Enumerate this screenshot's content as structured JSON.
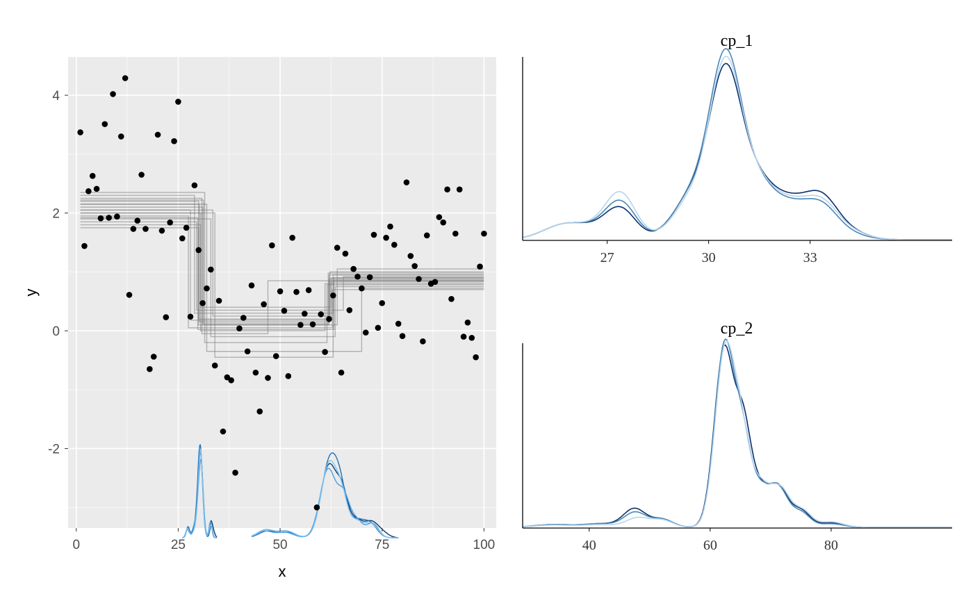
{
  "chart_data": [
    {
      "type": "scatter",
      "panel": "left",
      "xlabel": "x",
      "ylabel": "y",
      "xlim": [
        -2,
        103
      ],
      "ylim": [
        -3.35,
        4.65
      ],
      "x_ticks": [
        0,
        25,
        50,
        75,
        100
      ],
      "y_ticks": [
        -2,
        0,
        2,
        4
      ],
      "grid": true,
      "points": [
        [
          1,
          3.37
        ],
        [
          2,
          1.44
        ],
        [
          3,
          2.37
        ],
        [
          4,
          2.63
        ],
        [
          5,
          2.41
        ],
        [
          6,
          1.91
        ],
        [
          7,
          3.51
        ],
        [
          8,
          1.92
        ],
        [
          9,
          4.02
        ],
        [
          10,
          1.94
        ],
        [
          11,
          3.3
        ],
        [
          12,
          4.29
        ],
        [
          13,
          0.61
        ],
        [
          14,
          1.73
        ],
        [
          15,
          1.87
        ],
        [
          16,
          2.65
        ],
        [
          17,
          1.73
        ],
        [
          18,
          -0.65
        ],
        [
          19,
          -0.44
        ],
        [
          20,
          3.33
        ],
        [
          21,
          1.7
        ],
        [
          22,
          0.23
        ],
        [
          23,
          1.84
        ],
        [
          24,
          3.22
        ],
        [
          25,
          3.89
        ],
        [
          26,
          1.57
        ],
        [
          27,
          1.75
        ],
        [
          28,
          0.24
        ],
        [
          29,
          2.47
        ],
        [
          30,
          1.37
        ],
        [
          31,
          0.47
        ],
        [
          32,
          0.72
        ],
        [
          33,
          1.04
        ],
        [
          34,
          -0.59
        ],
        [
          35,
          0.51
        ],
        [
          36,
          -1.71
        ],
        [
          37,
          -0.79
        ],
        [
          38,
          -0.84
        ],
        [
          39,
          -2.41
        ],
        [
          40,
          0.04
        ],
        [
          41,
          0.22
        ],
        [
          42,
          -0.35
        ],
        [
          43,
          0.77
        ],
        [
          44,
          -0.71
        ],
        [
          45,
          -1.37
        ],
        [
          46,
          0.45
        ],
        [
          47,
          -0.8
        ],
        [
          48,
          1.45
        ],
        [
          49,
          -0.43
        ],
        [
          50,
          0.67
        ],
        [
          51,
          0.34
        ],
        [
          52,
          -0.77
        ],
        [
          53,
          1.58
        ],
        [
          54,
          0.66
        ],
        [
          55,
          0.1
        ],
        [
          56,
          0.29
        ],
        [
          57,
          0.69
        ],
        [
          58,
          0.11
        ],
        [
          59,
          -3.0
        ],
        [
          60,
          0.28
        ],
        [
          61,
          -0.36
        ],
        [
          62,
          0.2
        ],
        [
          63,
          0.6
        ],
        [
          64,
          1.41
        ],
        [
          65,
          -0.71
        ],
        [
          66,
          1.31
        ],
        [
          67,
          0.35
        ],
        [
          68,
          1.05
        ],
        [
          69,
          0.92
        ],
        [
          70,
          0.72
        ],
        [
          71,
          -0.03
        ],
        [
          72,
          0.91
        ],
        [
          73,
          1.63
        ],
        [
          74,
          0.05
        ],
        [
          75,
          0.47
        ],
        [
          76,
          1.58
        ],
        [
          77,
          1.77
        ],
        [
          78,
          1.46
        ],
        [
          79,
          0.12
        ],
        [
          80,
          -0.09
        ],
        [
          81,
          2.52
        ],
        [
          82,
          1.27
        ],
        [
          83,
          1.1
        ],
        [
          84,
          0.88
        ],
        [
          85,
          -0.18
        ],
        [
          86,
          1.62
        ],
        [
          87,
          0.8
        ],
        [
          88,
          0.83
        ],
        [
          89,
          1.93
        ],
        [
          90,
          1.84
        ],
        [
          91,
          2.4
        ],
        [
          92,
          0.54
        ],
        [
          93,
          1.65
        ],
        [
          94,
          2.4
        ],
        [
          95,
          -0.1
        ],
        [
          96,
          0.14
        ],
        [
          97,
          -0.12
        ],
        [
          98,
          -0.45
        ],
        [
          99,
          1.09
        ],
        [
          100,
          1.65
        ]
      ],
      "fit_lines": [
        {
          "cp1": 31.0,
          "cp2": 62.0,
          "p1": 2.1,
          "p2": 0.1,
          "p3": 0.85
        },
        {
          "cp1": 30.0,
          "cp2": 62.5,
          "p1": 2.2,
          "p2": 0.2,
          "p3": 0.9
        },
        {
          "cp1": 30.5,
          "cp2": 61.0,
          "p1": 2.0,
          "p2": 0.0,
          "p3": 0.8
        },
        {
          "cp1": 29.0,
          "cp2": 63.0,
          "p1": 2.3,
          "p2": 0.3,
          "p3": 0.95
        },
        {
          "cp1": 33.0,
          "cp2": 63.5,
          "p1": 1.9,
          "p2": -0.1,
          "p3": 0.75
        },
        {
          "cp1": 30.2,
          "cp2": 62.2,
          "p1": 2.15,
          "p2": 0.15,
          "p3": 1.0
        },
        {
          "cp1": 27.5,
          "cp2": 62.8,
          "p1": 1.95,
          "p2": 0.05,
          "p3": 0.7
        },
        {
          "cp1": 33.5,
          "cp2": 62.0,
          "p1": 2.05,
          "p2": 0.25,
          "p3": 0.88
        },
        {
          "cp1": 30.8,
          "cp2": 47.0,
          "p1": 2.25,
          "p2": -0.05,
          "p3": 0.85
        },
        {
          "cp1": 29.5,
          "cp2": 65.5,
          "p1": 1.85,
          "p2": 0.35,
          "p3": 0.92
        },
        {
          "cp1": 31.5,
          "cp2": 61.5,
          "p1": 2.35,
          "p2": -0.2,
          "p3": 0.78
        },
        {
          "cp1": 30.0,
          "cp2": 64.0,
          "p1": 1.75,
          "p2": 0.1,
          "p3": 1.05
        },
        {
          "cp1": 28.0,
          "cp2": 62.0,
          "p1": 2.05,
          "p2": 0.18,
          "p3": 0.95
        },
        {
          "cp1": 32.0,
          "cp2": 70.0,
          "p1": 2.15,
          "p2": -0.35,
          "p3": 0.72
        },
        {
          "cp1": 30.5,
          "cp2": 62.5,
          "p1": 1.8,
          "p2": 0.4,
          "p3": 0.83
        },
        {
          "cp1": 34.0,
          "cp2": 63.0,
          "p1": 2.0,
          "p2": -0.45,
          "p3": 0.9
        },
        {
          "cp1": 31.2,
          "cp2": 61.8,
          "p1": 2.22,
          "p2": 0.12,
          "p3": 0.98
        },
        {
          "cp1": 29.8,
          "cp2": 63.2,
          "p1": 1.92,
          "p2": 0.02,
          "p3": 0.86
        }
      ]
    },
    {
      "type": "line",
      "panel": "top-right",
      "title": "cp_1",
      "xlim": [
        24.5,
        37.2
      ],
      "x_ticks": [
        27,
        30,
        33
      ],
      "series_colors": [
        "#08306b",
        "#4a86b6",
        "#b8d4ec"
      ]
    },
    {
      "type": "line",
      "panel": "bottom-right",
      "title": "cp_2",
      "xlim": [
        29,
        100
      ],
      "x_ticks": [
        40,
        60,
        80
      ],
      "series_colors": [
        "#08306b",
        "#4a86b6",
        "#b8d4ec"
      ]
    }
  ]
}
